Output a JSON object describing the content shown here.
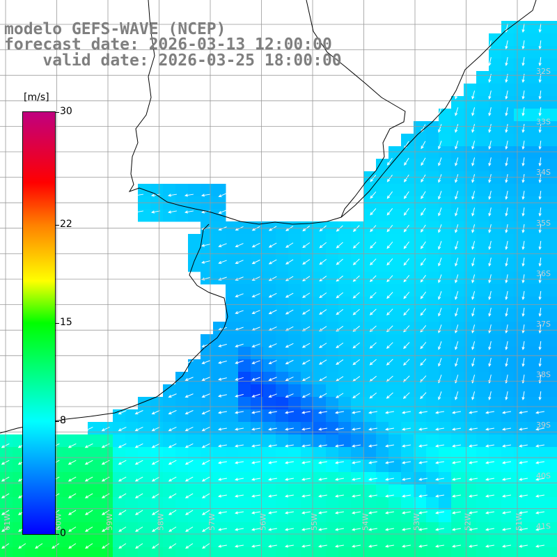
{
  "title": {
    "line1": "modelo GEFS-WAVE (NCEP)",
    "line2": "forecast date: 2026-03-13 12:00:00",
    "line3": "    valid date: 2026-03-25 18:00:00"
  },
  "colorbar": {
    "unit": "[m/s]",
    "min": 0,
    "max": 30,
    "ticks": [
      {
        "label": "30",
        "value": 30
      },
      {
        "label": "22",
        "value": 22
      },
      {
        "label": "15",
        "value": 15
      },
      {
        "label": "8",
        "value": 8
      },
      {
        "label": "0",
        "value": 0
      }
    ],
    "stops": [
      {
        "value": 0,
        "color": "#0000ff"
      },
      {
        "value": 8,
        "color": "#00ffff"
      },
      {
        "value": 15,
        "color": "#00ff00"
      },
      {
        "value": 18,
        "color": "#ffff00"
      },
      {
        "value": 22,
        "color": "#ff8000"
      },
      {
        "value": 25,
        "color": "#ff0000"
      },
      {
        "value": 30,
        "color": "#c00080"
      }
    ]
  },
  "lat_labels": [
    "32S",
    "33S",
    "34S",
    "35S",
    "36S",
    "37S",
    "38S",
    "39S",
    "40S",
    "41S"
  ],
  "lon_labels": [
    "61W",
    "60W",
    "59W",
    "58W",
    "57W",
    "56W",
    "55W",
    "54W",
    "53W",
    "52W",
    "51W"
  ],
  "colors": {
    "land": "#ffffff",
    "coast": "#000000",
    "grid": "#999999",
    "arrow": "#ffffff"
  }
}
